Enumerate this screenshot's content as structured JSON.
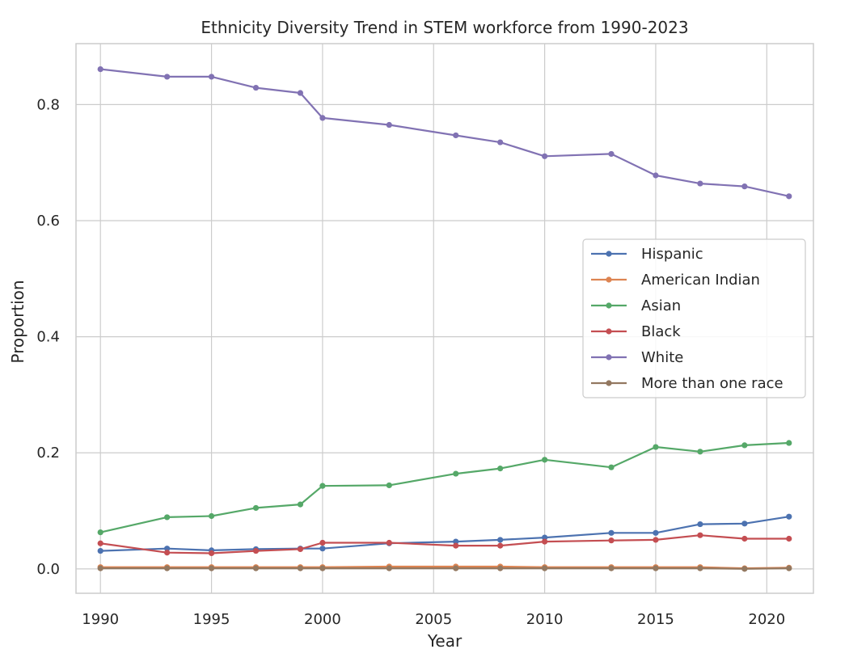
{
  "chart_data": {
    "type": "line",
    "title": "Ethnicity Diversity Trend in STEM workforce from 1990-2023",
    "xlabel": "Year",
    "ylabel": "Proportion",
    "xlim": [
      1988.9,
      2022.1
    ],
    "ylim": [
      -0.042,
      0.905
    ],
    "xticks": [
      1990,
      1995,
      2000,
      2005,
      2010,
      2015,
      2020
    ],
    "yticks": [
      0.0,
      0.2,
      0.4,
      0.6,
      0.8
    ],
    "ytick_labels": [
      "0.0",
      "0.2",
      "0.4",
      "0.6",
      "0.8"
    ],
    "grid": true,
    "legend_position": "center-right",
    "x": [
      1990,
      1993,
      1995,
      1997,
      1999,
      2000,
      2003,
      2006,
      2008,
      2010,
      2013,
      2015,
      2017,
      2019,
      2021
    ],
    "series": [
      {
        "name": "Hispanic",
        "color": "#4c72b0",
        "values": [
          0.031,
          0.035,
          0.032,
          0.034,
          0.035,
          0.035,
          0.044,
          0.047,
          0.05,
          0.054,
          0.062,
          0.062,
          0.077,
          0.078,
          0.09
        ]
      },
      {
        "name": "American Indian",
        "color": "#dd8452",
        "values": [
          0.003,
          0.003,
          0.003,
          0.003,
          0.003,
          0.003,
          0.004,
          0.004,
          0.004,
          0.003,
          0.003,
          0.003,
          0.003,
          0.001,
          0.002
        ]
      },
      {
        "name": "Asian",
        "color": "#55a868",
        "values": [
          0.063,
          0.089,
          0.091,
          0.105,
          0.111,
          0.143,
          0.144,
          0.164,
          0.173,
          0.188,
          0.175,
          0.21,
          0.202,
          0.213,
          0.217
        ]
      },
      {
        "name": "Black",
        "color": "#c44e52",
        "values": [
          0.044,
          0.028,
          0.027,
          0.031,
          0.034,
          0.045,
          0.045,
          0.04,
          0.04,
          0.047,
          0.049,
          0.05,
          0.058,
          0.052,
          0.052
        ]
      },
      {
        "name": "White",
        "color": "#8172b3",
        "values": [
          0.861,
          0.848,
          0.848,
          0.829,
          0.82,
          0.777,
          0.765,
          0.747,
          0.735,
          0.711,
          0.715,
          0.678,
          0.664,
          0.659,
          0.642
        ]
      },
      {
        "name": "More than one race",
        "color": "#937860",
        "values": [
          0.001,
          0.001,
          0.001,
          0.001,
          0.001,
          0.001,
          0.001,
          0.001,
          0.001,
          0.001,
          0.001,
          0.001,
          0.001,
          0.0,
          0.001
        ]
      }
    ]
  }
}
